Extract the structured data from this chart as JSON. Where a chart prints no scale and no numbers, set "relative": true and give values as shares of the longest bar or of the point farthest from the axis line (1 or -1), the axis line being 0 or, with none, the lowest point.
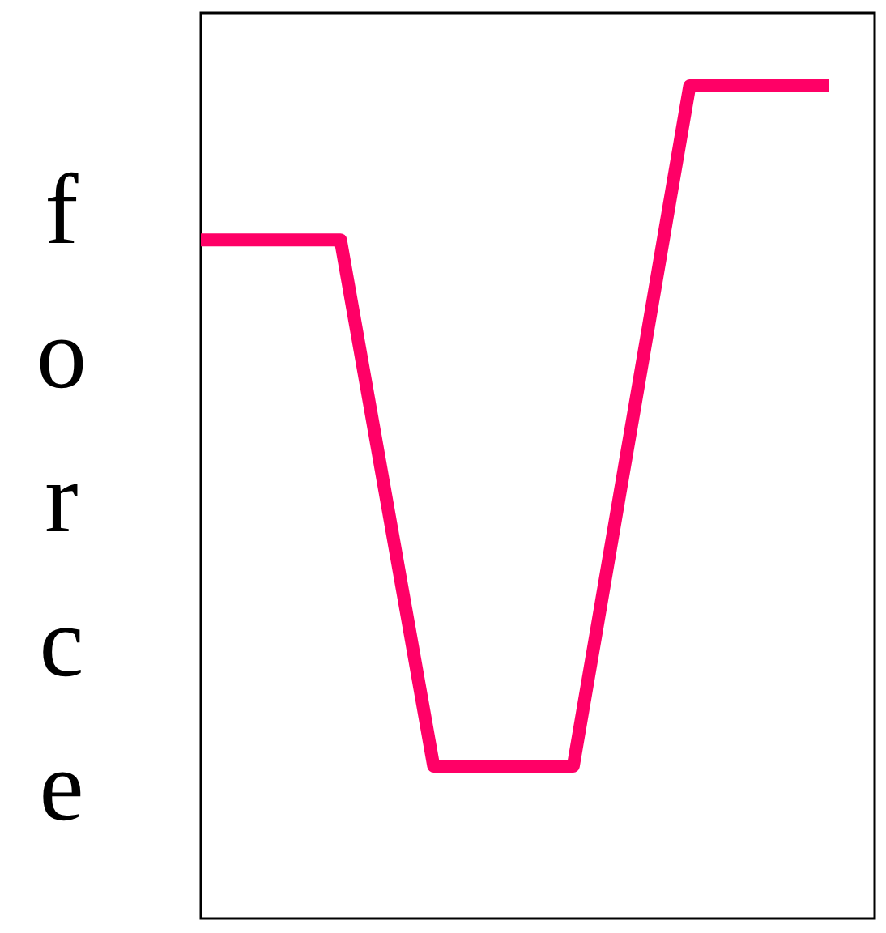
{
  "chart_data": {
    "type": "line",
    "relative": true,
    "ylabel": "force",
    "categories": [
      null,
      null,
      null,
      null,
      null,
      null,
      null,
      null,
      null,
      null,
      null,
      null,
      null,
      null,
      null,
      null,
      null,
      null,
      null,
      null,
      null,
      null,
      null,
      null,
      null,
      null,
      null,
      null
    ],
    "marker": "none",
    "line_style": "solid",
    "series": [
      {
        "color": "#ff0066",
        "values": [
          0.815,
          0.815,
          0.815,
          0.815,
          0.815,
          0.815,
          0.815,
          0.657,
          0.499,
          0.341,
          0.183,
          0.183,
          0.183,
          0.183,
          0.183,
          0.183,
          0.183,
          0.346,
          0.51,
          0.673,
          0.837,
          1,
          1,
          1,
          1,
          1,
          1,
          1
        ]
      }
    ]
  }
}
